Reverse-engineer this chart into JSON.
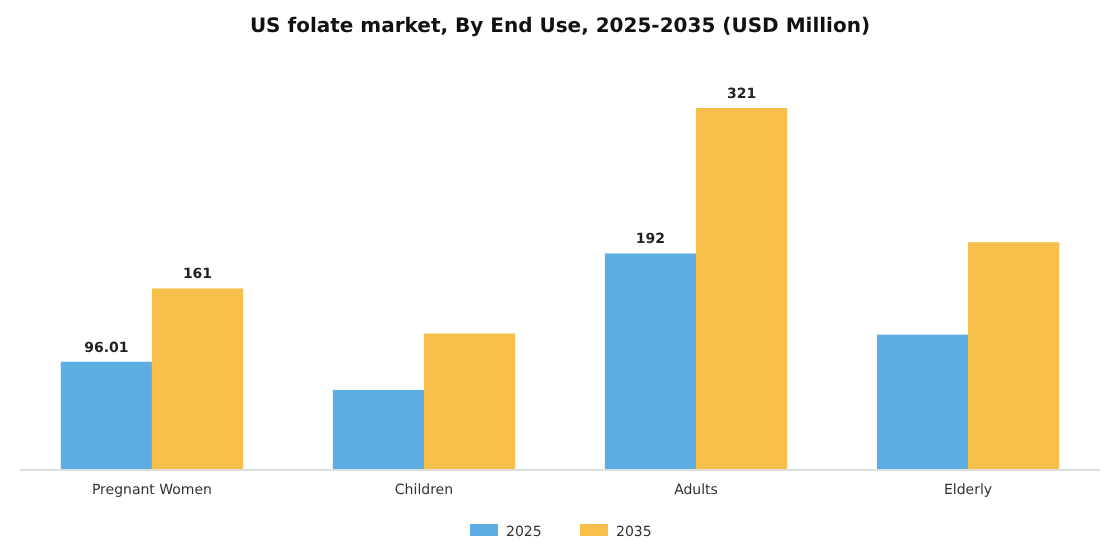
{
  "chart_data": {
    "type": "bar",
    "title": "US folate market, By End Use, 2025-2035 (USD Million)",
    "categories": [
      "Pregnant Women",
      "Children",
      "Adults",
      "Elderly"
    ],
    "series": [
      {
        "name": "2025",
        "color": "#5dade2",
        "values": [
          96.01,
          71,
          192,
          120
        ],
        "value_labels": [
          "96.01",
          null,
          "192",
          null
        ]
      },
      {
        "name": "2035",
        "color": "#f7c04a",
        "values": [
          161,
          121,
          321,
          202
        ],
        "value_labels": [
          "161",
          null,
          "321",
          null
        ]
      }
    ],
    "legend": "bottom"
  }
}
